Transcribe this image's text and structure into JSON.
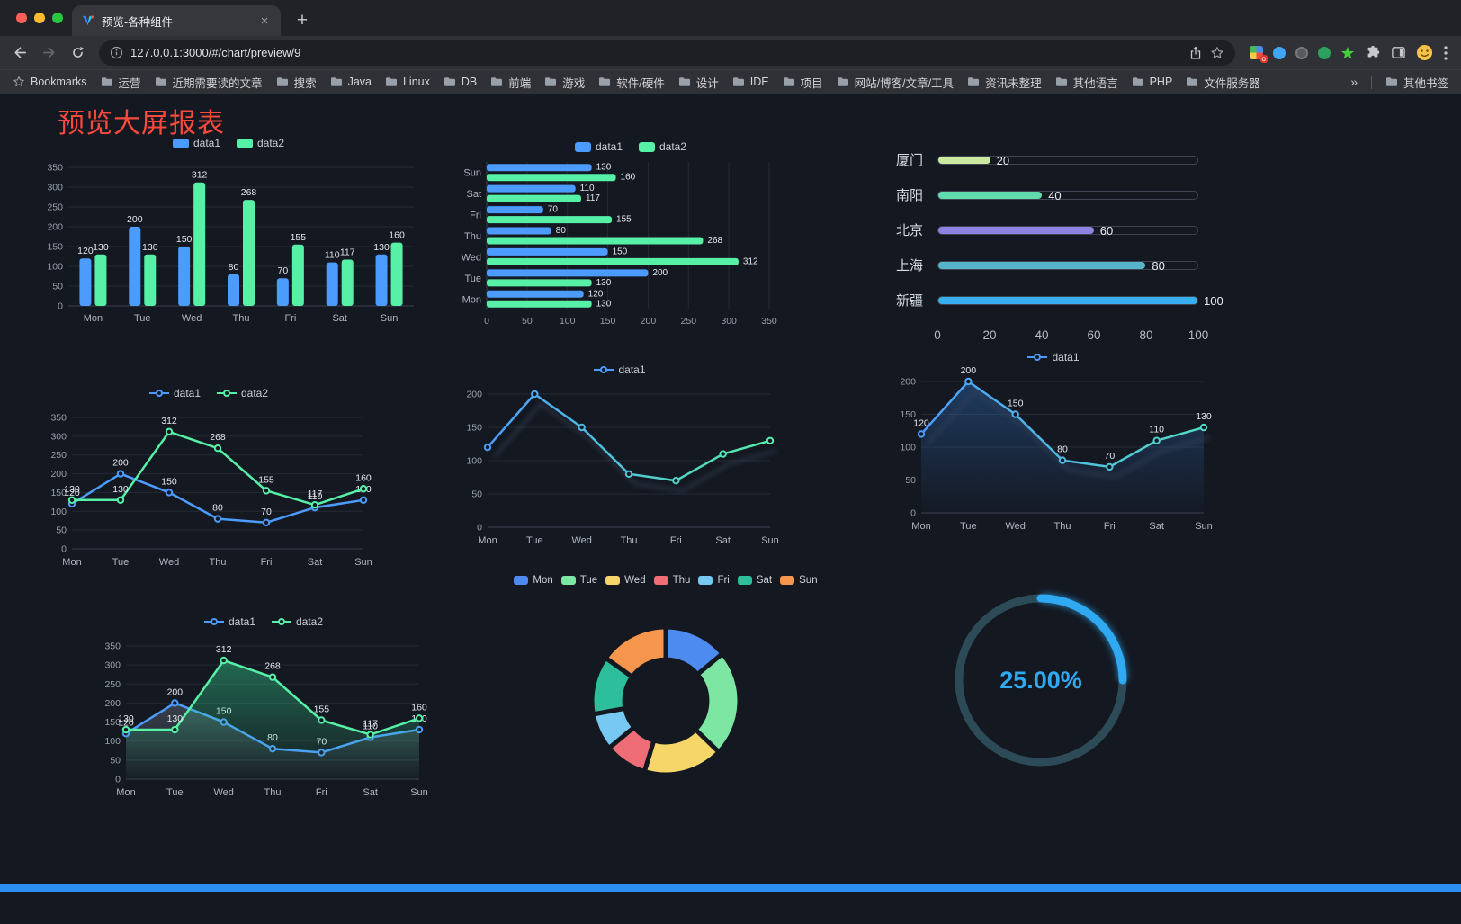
{
  "browser": {
    "tab_title": "预览-各种组件",
    "url": "127.0.0.1:3000/#/chart/preview/9",
    "bookmarks_bar": {
      "label": "Bookmarks",
      "folders": [
        "运营",
        "近期需要读的文章",
        "搜索",
        "Java",
        "Linux",
        "DB",
        "前端",
        "游戏",
        "软件/硬件",
        "设计",
        "IDE",
        "项目",
        "网站/博客/文章/工具",
        "资讯未整理",
        "其他语言",
        "PHP",
        "文件服务器"
      ],
      "overflow": "»",
      "other": "其他书签"
    }
  },
  "page": {
    "title": "预览大屏报表",
    "title_color": "#f94a3d",
    "background": "#141821",
    "footer_bar_color": "#2e8ef2"
  },
  "chart_data": [
    {
      "id": "bar-vertical",
      "type": "bar",
      "categories": [
        "Mon",
        "Tue",
        "Wed",
        "Thu",
        "Fri",
        "Sat",
        "Sun"
      ],
      "series": [
        {
          "name": "data1",
          "color": "#4C9BFE",
          "values": [
            120,
            200,
            150,
            80,
            70,
            110,
            130
          ]
        },
        {
          "name": "data2",
          "color": "#56F0A7",
          "values": [
            130,
            130,
            312,
            268,
            155,
            117,
            160
          ]
        }
      ],
      "ylim": [
        0,
        350
      ],
      "ytick_step": 50,
      "value_labels": true,
      "legend_position": "top",
      "grid": true
    },
    {
      "id": "bar-horizontal",
      "type": "bar-h",
      "categories": [
        "Mon",
        "Tue",
        "Wed",
        "Thu",
        "Fri",
        "Sat",
        "Sun"
      ],
      "series": [
        {
          "name": "data1",
          "color": "#4C9BFE",
          "values": [
            120,
            200,
            150,
            80,
            70,
            110,
            130
          ]
        },
        {
          "name": "data2",
          "color": "#56F0A7",
          "values": [
            130,
            130,
            312,
            268,
            155,
            117,
            160
          ]
        }
      ],
      "xlim": [
        0,
        350
      ],
      "xtick_step": 50,
      "value_labels": true,
      "legend_position": "top",
      "grid": true
    },
    {
      "id": "city-progress",
      "type": "progress",
      "items": [
        {
          "label": "厦门",
          "value": 20,
          "color": "#cde89f"
        },
        {
          "label": "南阳",
          "value": 40,
          "color": "#62dcae"
        },
        {
          "label": "北京",
          "value": 60,
          "color": "#8d83e3"
        },
        {
          "label": "上海",
          "value": 80,
          "color": "#58b5c9"
        },
        {
          "label": "新疆",
          "value": 100,
          "color": "#39aff0"
        }
      ],
      "xlim": [
        0,
        100
      ],
      "xticks": [
        0,
        20,
        40,
        60,
        80,
        100
      ]
    },
    {
      "id": "line-dual",
      "type": "line",
      "categories": [
        "Mon",
        "Tue",
        "Wed",
        "Thu",
        "Fri",
        "Sat",
        "Sun"
      ],
      "series": [
        {
          "name": "data1",
          "color": "#4C9BFE",
          "values": [
            120,
            200,
            150,
            80,
            70,
            110,
            130
          ]
        },
        {
          "name": "data2",
          "color": "#56F0A7",
          "values": [
            130,
            130,
            312,
            268,
            155,
            117,
            160
          ]
        }
      ],
      "ylim": [
        0,
        350
      ],
      "ytick_step": 50,
      "markers": true,
      "value_labels": true
    },
    {
      "id": "line-gradient",
      "type": "line",
      "categories": [
        "Mon",
        "Tue",
        "Wed",
        "Thu",
        "Fri",
        "Sat",
        "Sun"
      ],
      "series": [
        {
          "name": "data1",
          "gradient": [
            "#4C9BFE",
            "#56F0A7"
          ],
          "shadow": true,
          "values": [
            120,
            200,
            150,
            80,
            70,
            110,
            130
          ]
        }
      ],
      "ylim": [
        0,
        200
      ],
      "ytick_step": 50,
      "markers": true,
      "value_labels": false
    },
    {
      "id": "line-area",
      "type": "line",
      "categories": [
        "Mon",
        "Tue",
        "Wed",
        "Thu",
        "Fri",
        "Sat",
        "Sun"
      ],
      "series": [
        {
          "name": "data1",
          "color": "#4C9BFE",
          "gradient": [
            "#4C9BFE",
            "#52dcc2"
          ],
          "area": "#2e6cb8",
          "shadow": true,
          "values": [
            120,
            200,
            150,
            80,
            70,
            110,
            130
          ]
        }
      ],
      "ylim": [
        0,
        200
      ],
      "ytick_step": 50,
      "markers": true,
      "value_labels": true
    },
    {
      "id": "line-area-dual",
      "type": "line",
      "categories": [
        "Mon",
        "Tue",
        "Wed",
        "Thu",
        "Fri",
        "Sat",
        "Sun"
      ],
      "series": [
        {
          "name": "data1",
          "color": "#4C9BFE",
          "area": "#6d7988",
          "values": [
            120,
            200,
            150,
            80,
            70,
            110,
            130
          ]
        },
        {
          "name": "data2",
          "color": "#56F0A7",
          "area": "#35d893",
          "values": [
            130,
            130,
            312,
            268,
            155,
            117,
            160
          ]
        }
      ],
      "ylim": [
        0,
        350
      ],
      "ytick_step": 50,
      "markers": true,
      "value_labels": true
    },
    {
      "id": "weekday-donut",
      "type": "pie",
      "radius": 82,
      "inner_ratio": 0.56,
      "items": [
        {
          "label": "Mon",
          "value": 120,
          "color": "#4e8bf0"
        },
        {
          "label": "Tue",
          "value": 200,
          "color": "#7de6a3"
        },
        {
          "label": "Wed",
          "value": 150,
          "color": "#f6d668"
        },
        {
          "label": "Thu",
          "value": 80,
          "color": "#ee6d76"
        },
        {
          "label": "Fri",
          "value": 70,
          "color": "#77c8f3"
        },
        {
          "label": "Sat",
          "value": 110,
          "color": "#2dbf9c"
        },
        {
          "label": "Sun",
          "value": 130,
          "color": "#f6964d"
        }
      ]
    },
    {
      "id": "percent-gauge",
      "type": "gauge",
      "value": 25,
      "display": "25.00%",
      "color": "#2ea9f2",
      "track_color": "#2c4b57"
    }
  ]
}
